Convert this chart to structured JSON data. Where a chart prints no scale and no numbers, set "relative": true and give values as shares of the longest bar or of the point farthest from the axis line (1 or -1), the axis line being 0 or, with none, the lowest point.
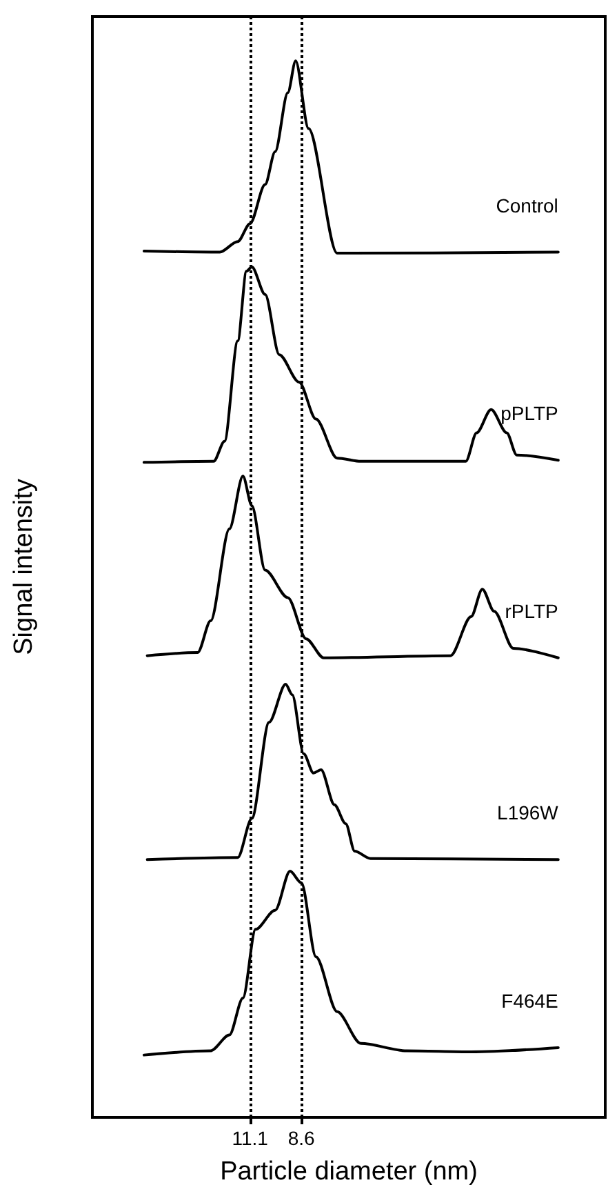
{
  "chart_data": {
    "type": "line",
    "xlabel": "Particle diameter (nm)",
    "ylabel": "Signal intensity",
    "relative": true,
    "log": "x",
    "xlim": [
      24.3,
      1.9
    ],
    "xticks": [
      11.1,
      8.6
    ],
    "tick_labels": "x",
    "grid": false,
    "legend": false,
    "marker": "none",
    "line_style": "solid",
    "ref_lines": [
      {
        "axis": "x",
        "value": 11.1,
        "line_style": "dotted",
        "color": "#000000"
      },
      {
        "axis": "x",
        "value": 8.6,
        "line_style": "dotted",
        "color": "#000000"
      }
    ],
    "series": [
      {
        "name": "Control",
        "color": "#000000",
        "x": [
          18.8,
          12.9,
          11.8,
          11.1,
          10.3,
          9.8,
          9.2,
          8.85,
          8.3,
          7.2,
          2.4
        ],
        "values": [
          0.82,
          0.819,
          0.829,
          0.846,
          0.883,
          0.914,
          0.97,
          1,
          0.936,
          0.818,
          0.819
        ]
      },
      {
        "name": "pPLTP",
        "color": "#000000",
        "x": [
          18.8,
          13.3,
          12.6,
          11.8,
          11.3,
          11.0,
          10.3,
          9.6,
          8.7,
          8.0,
          7.2,
          6.4,
          3.8,
          3.6,
          3.35,
          3.1,
          2.95,
          2.4
        ],
        "values": [
          0.62,
          0.621,
          0.64,
          0.735,
          0.801,
          0.805,
          0.779,
          0.722,
          0.696,
          0.661,
          0.624,
          0.621,
          0.621,
          0.648,
          0.67,
          0.648,
          0.627,
          0.622
        ]
      },
      {
        "name": "rPLTP",
        "color": "#000000",
        "x": [
          18.5,
          14.4,
          13.5,
          12.3,
          11.5,
          11.0,
          10.3,
          9.2,
          8.4,
          7.7,
          4.1,
          3.7,
          3.5,
          3.3,
          3.0,
          2.4
        ],
        "values": [
          0.437,
          0.44,
          0.47,
          0.557,
          0.607,
          0.579,
          0.518,
          0.492,
          0.453,
          0.435,
          0.437,
          0.474,
          0.5,
          0.479,
          0.444,
          0.435
        ]
      },
      {
        "name": "L196W",
        "color": "#000000",
        "x": [
          18.5,
          11.8,
          11.0,
          10.1,
          9.3,
          9.0,
          8.5,
          8.1,
          7.8,
          7.3,
          6.9,
          6.6,
          6.1,
          2.4
        ],
        "values": [
          0.244,
          0.246,
          0.283,
          0.374,
          0.41,
          0.4,
          0.344,
          0.326,
          0.329,
          0.296,
          0.278,
          0.252,
          0.245,
          0.244
        ]
      },
      {
        "name": "F464E",
        "color": "#000000",
        "x": [
          18.8,
          13.5,
          12.3,
          11.5,
          10.8,
          9.8,
          9.1,
          8.6,
          8.0,
          7.2,
          6.4,
          5.1,
          3.7,
          2.4
        ],
        "values": [
          0.059,
          0.063,
          0.078,
          0.113,
          0.178,
          0.196,
          0.233,
          0.222,
          0.152,
          0.1,
          0.07,
          0.063,
          0.062,
          0.066
        ]
      }
    ]
  }
}
